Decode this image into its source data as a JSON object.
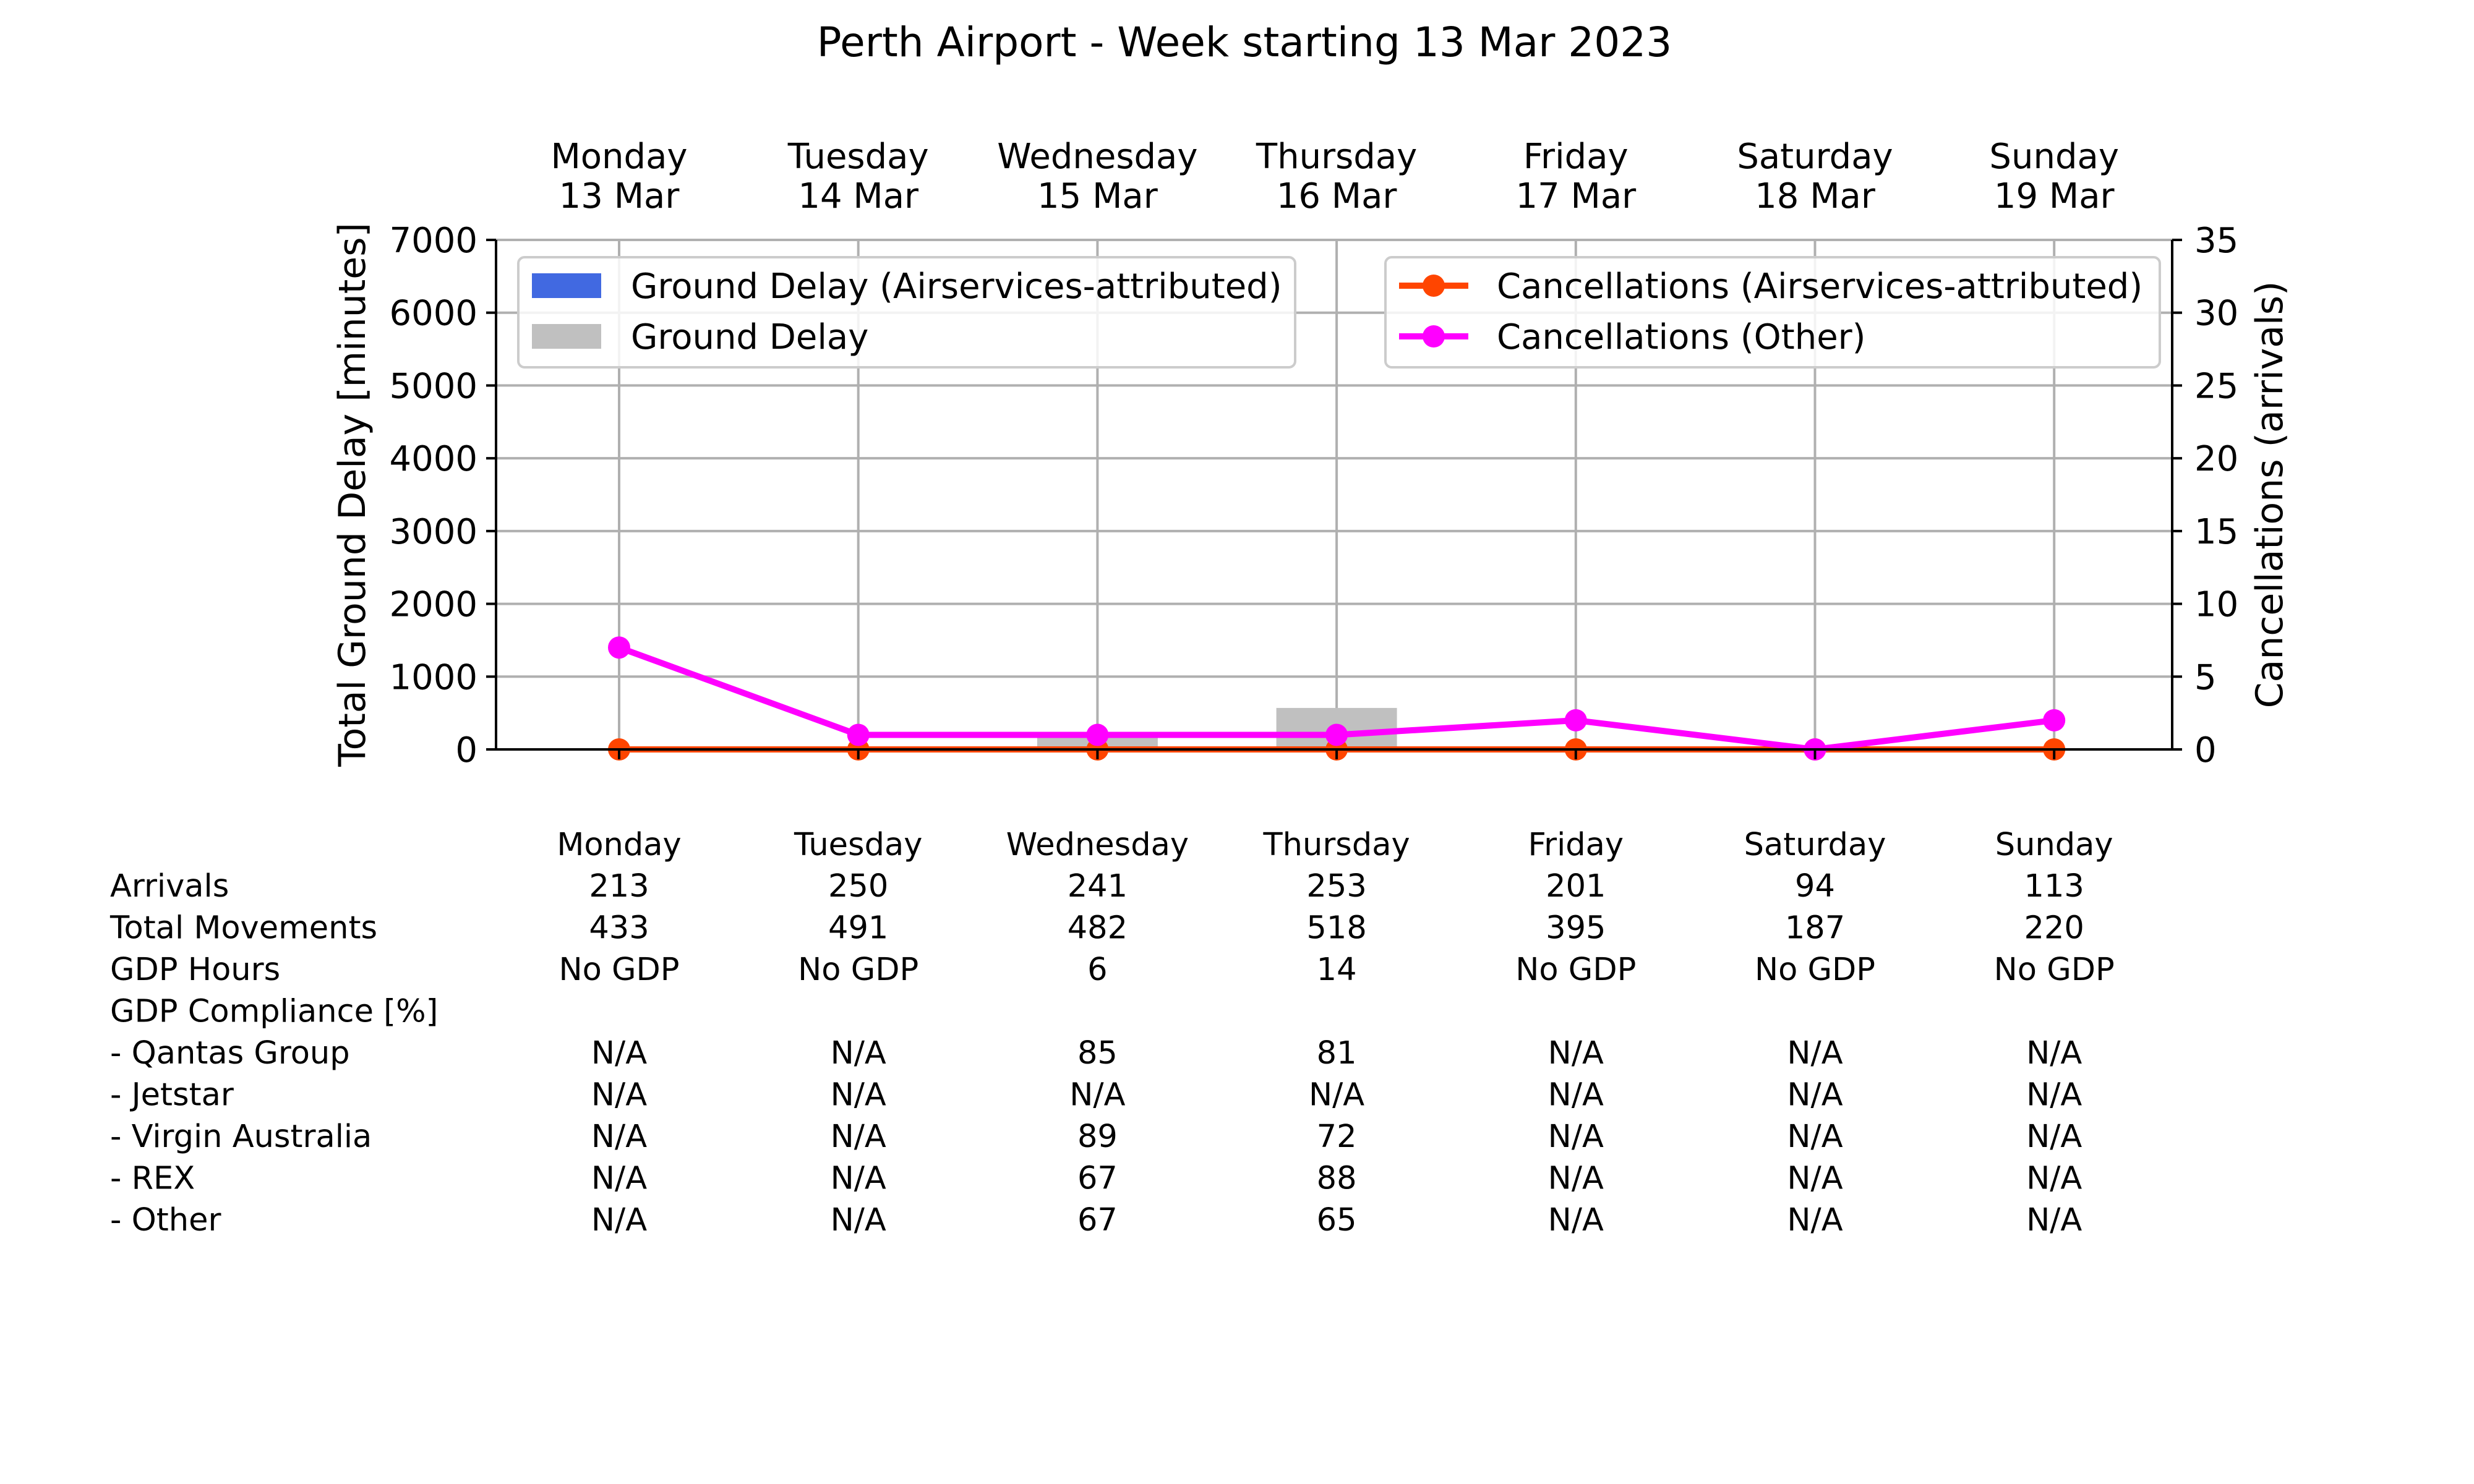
{
  "chart_data": {
    "type": "bar",
    "title": "Perth Airport - Week starting 13 Mar 2023",
    "days": [
      "Monday",
      "Tuesday",
      "Wednesday",
      "Thursday",
      "Friday",
      "Saturday",
      "Sunday"
    ],
    "dates": [
      "13 Mar",
      "14 Mar",
      "15 Mar",
      "16 Mar",
      "17 Mar",
      "18 Mar",
      "19 Mar"
    ],
    "ylabel_left": "Total Ground Delay [minutes]",
    "ylabel_right": "Cancellations (arrivals)",
    "ylim_left": [
      0,
      7000
    ],
    "ylim_right": [
      0,
      35
    ],
    "yticks_left": [
      "0",
      "1000",
      "2000",
      "3000",
      "4000",
      "5000",
      "6000",
      "7000"
    ],
    "yticks_right": [
      "0",
      "5",
      "10",
      "15",
      "20",
      "25",
      "30",
      "35"
    ],
    "grid": true,
    "series": [
      {
        "name": "Ground Delay (Airservices-attributed)",
        "kind": "bar",
        "axis": "left",
        "color": "#4169e1",
        "values": [
          0,
          0,
          0,
          0,
          0,
          0,
          0
        ]
      },
      {
        "name": "Ground Delay",
        "kind": "bar",
        "axis": "left",
        "color": "#c0c0c0",
        "values": [
          0,
          0,
          160,
          570,
          0,
          0,
          0
        ]
      },
      {
        "name": "Cancellations (Airservices-attributed)",
        "kind": "line",
        "axis": "right",
        "color": "#ff4500",
        "values": [
          0,
          0,
          0,
          0,
          0,
          0,
          0
        ]
      },
      {
        "name": "Cancellations (Other)",
        "kind": "line",
        "axis": "right",
        "color": "#ff00ff",
        "values": [
          7,
          1,
          1,
          1,
          2,
          0,
          2
        ]
      }
    ],
    "legend_left": "top-left",
    "legend_right": "top-right"
  },
  "table": {
    "header": [
      "Monday",
      "Tuesday",
      "Wednesday",
      "Thursday",
      "Friday",
      "Saturday",
      "Sunday"
    ],
    "rows": [
      {
        "label": "Arrivals",
        "values": [
          "213",
          "250",
          "241",
          "253",
          "201",
          "94",
          "113"
        ]
      },
      {
        "label": "Total Movements",
        "values": [
          "433",
          "491",
          "482",
          "518",
          "395",
          "187",
          "220"
        ]
      },
      {
        "label": "GDP Hours",
        "values": [
          "No GDP",
          "No GDP",
          "6",
          "14",
          "No GDP",
          "No GDP",
          "No GDP"
        ]
      },
      {
        "label": "GDP Compliance [%]",
        "values": [
          "",
          "",
          "",
          "",
          "",
          "",
          ""
        ]
      },
      {
        "label": "  - Qantas Group",
        "values": [
          "N/A",
          "N/A",
          "85",
          "81",
          "N/A",
          "N/A",
          "N/A"
        ]
      },
      {
        "label": "  - Jetstar",
        "values": [
          "N/A",
          "N/A",
          "N/A",
          "N/A",
          "N/A",
          "N/A",
          "N/A"
        ]
      },
      {
        "label": "  - Virgin Australia",
        "values": [
          "N/A",
          "N/A",
          "89",
          "72",
          "N/A",
          "N/A",
          "N/A"
        ]
      },
      {
        "label": "  - REX",
        "values": [
          "N/A",
          "N/A",
          "67",
          "88",
          "N/A",
          "N/A",
          "N/A"
        ]
      },
      {
        "label": "  - Other",
        "values": [
          "N/A",
          "N/A",
          "67",
          "65",
          "N/A",
          "N/A",
          "N/A"
        ]
      }
    ]
  }
}
